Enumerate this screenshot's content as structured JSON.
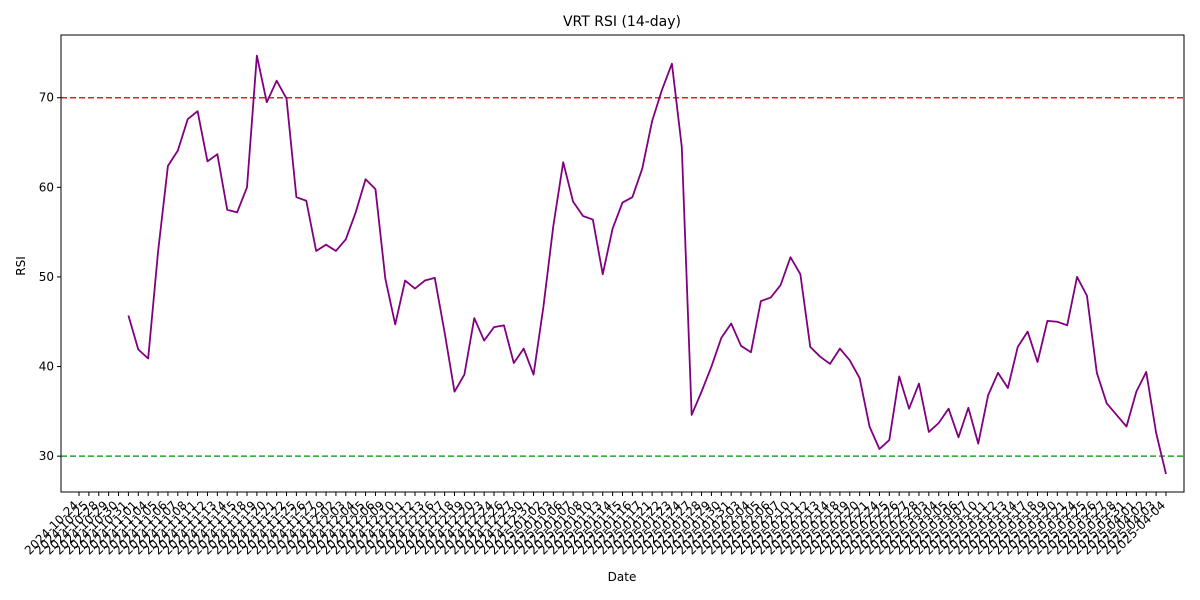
{
  "chart_data": {
    "type": "line",
    "title": "VRT RSI (14-day)",
    "xlabel": "Date",
    "ylabel": "RSI",
    "ylim": [
      26,
      77
    ],
    "yticks": [
      30,
      40,
      50,
      60,
      70
    ],
    "grid": false,
    "line_color": "#800080",
    "reference_lines": [
      {
        "value": 70,
        "color": "#d62728",
        "style": "dashed"
      },
      {
        "value": 30,
        "color": "#2ca02c",
        "style": "dashed"
      }
    ],
    "x": [
      "2024-10-24",
      "2024-10-25",
      "2024-10-28",
      "2024-10-29",
      "2024-10-30",
      "2024-10-31",
      "2024-11-01",
      "2024-11-04",
      "2024-11-05",
      "2024-11-06",
      "2024-11-07",
      "2024-11-08",
      "2024-11-11",
      "2024-11-12",
      "2024-11-13",
      "2024-11-14",
      "2024-11-15",
      "2024-11-18",
      "2024-11-19",
      "2024-11-20",
      "2024-11-21",
      "2024-11-22",
      "2024-11-25",
      "2024-11-26",
      "2024-11-27",
      "2024-11-29",
      "2024-12-02",
      "2024-12-03",
      "2024-12-04",
      "2024-12-05",
      "2024-12-06",
      "2024-12-09",
      "2024-12-10",
      "2024-12-11",
      "2024-12-12",
      "2024-12-13",
      "2024-12-16",
      "2024-12-17",
      "2024-12-18",
      "2024-12-19",
      "2024-12-20",
      "2024-12-23",
      "2024-12-24",
      "2024-12-26",
      "2024-12-27",
      "2024-12-30",
      "2024-12-31",
      "2025-01-02",
      "2025-01-03",
      "2025-01-06",
      "2025-01-07",
      "2025-01-08",
      "2025-01-10",
      "2025-01-13",
      "2025-01-14",
      "2025-01-15",
      "2025-01-16",
      "2025-01-17",
      "2025-01-21",
      "2025-01-22",
      "2025-01-23",
      "2025-01-24",
      "2025-01-27",
      "2025-01-28",
      "2025-01-29",
      "2025-01-30",
      "2025-01-31",
      "2025-02-03",
      "2025-02-04",
      "2025-02-05",
      "2025-02-06",
      "2025-02-07",
      "2025-02-10",
      "2025-02-11",
      "2025-02-12",
      "2025-02-13",
      "2025-02-14",
      "2025-02-18",
      "2025-02-19",
      "2025-02-20",
      "2025-02-21",
      "2025-02-24",
      "2025-02-25",
      "2025-02-26",
      "2025-02-27",
      "2025-02-28",
      "2025-03-03",
      "2025-03-04",
      "2025-03-05",
      "2025-03-06",
      "2025-03-07",
      "2025-03-10",
      "2025-03-11",
      "2025-03-12",
      "2025-03-13",
      "2025-03-14",
      "2025-03-17",
      "2025-03-18",
      "2025-03-19",
      "2025-03-20",
      "2025-03-21",
      "2025-03-24",
      "2025-03-25",
      "2025-03-26",
      "2025-03-27",
      "2025-03-28",
      "2025-03-31",
      "2025-04-01",
      "2025-04-02",
      "2025-04-03",
      "2025-04-04"
    ],
    "series": [
      {
        "values": [
          null,
          null,
          null,
          null,
          null,
          45.7,
          41.9,
          40.9,
          52.8,
          62.4,
          64.1,
          67.6,
          68.5,
          62.9,
          63.7,
          57.5,
          57.2,
          60.0,
          74.7,
          69.5,
          71.9,
          69.9,
          58.9,
          58.5,
          52.9,
          53.6,
          52.9,
          54.2,
          57.2,
          60.9,
          59.8,
          49.8,
          44.7,
          49.6,
          48.7,
          49.6,
          49.9,
          43.8,
          37.2,
          39.1,
          45.4,
          42.9,
          44.4,
          44.6,
          40.4,
          42.0,
          39.1,
          46.7,
          55.7,
          62.8,
          58.4,
          56.8,
          56.4,
          50.3,
          55.4,
          58.3,
          58.9,
          62.1,
          67.4,
          70.9,
          73.8,
          64.5,
          34.6,
          37.2,
          40.0,
          43.2,
          44.8,
          42.3,
          41.6,
          47.3,
          47.7,
          49.1,
          52.2,
          50.3,
          42.2,
          41.1,
          40.3,
          42.0,
          40.7,
          38.7,
          33.3,
          30.8,
          31.8,
          38.9,
          35.3,
          38.1,
          32.7,
          33.7,
          35.3,
          32.1,
          35.4,
          31.4,
          36.8,
          39.3,
          37.6,
          42.2,
          43.9,
          40.5,
          45.1,
          45.0,
          44.6,
          50.0,
          47.9,
          39.3,
          35.9,
          34.6,
          33.3,
          37.2,
          39.4,
          32.6,
          28.0
        ]
      }
    ]
  }
}
